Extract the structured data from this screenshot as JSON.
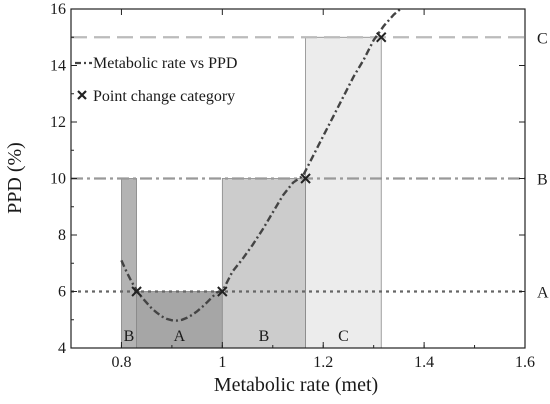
{
  "chart_data": {
    "type": "line",
    "xlabel": "Metabolic rate (met)",
    "ylabel": "PPD (%)",
    "xlim": [
      0.7,
      1.6
    ],
    "ylim": [
      4,
      16
    ],
    "xticks": [
      "0.8",
      "1",
      "1.2",
      "1.4",
      "1.6"
    ],
    "yticks": [
      "4",
      "6",
      "8",
      "10",
      "12",
      "14",
      "16"
    ],
    "grid": false,
    "legend_position": "top-left",
    "series": [
      {
        "name": "Metabolic rate vs PPD",
        "style": "dash-dot",
        "color": "#444444",
        "x": [
          0.8,
          0.81,
          0.82,
          0.83,
          0.84,
          0.85,
          0.86,
          0.87,
          0.88,
          0.89,
          0.9,
          0.91,
          0.92,
          0.93,
          0.94,
          0.95,
          0.96,
          0.97,
          0.98,
          0.99,
          1.0,
          1.02,
          1.04,
          1.06,
          1.08,
          1.1,
          1.12,
          1.14,
          1.16,
          1.18,
          1.2,
          1.22,
          1.24,
          1.26,
          1.28,
          1.3,
          1.32,
          1.34,
          1.36
        ],
        "y": [
          7.1,
          6.7,
          6.35,
          6.05,
          5.8,
          5.6,
          5.4,
          5.25,
          5.12,
          5.03,
          4.98,
          4.97,
          5.0,
          5.07,
          5.17,
          5.3,
          5.45,
          5.62,
          5.8,
          5.98,
          6.0,
          6.7,
          7.15,
          7.65,
          8.2,
          8.8,
          9.4,
          9.85,
          10.1,
          10.8,
          11.5,
          12.2,
          12.9,
          13.6,
          14.2,
          14.9,
          15.4,
          15.8,
          16.1
        ]
      },
      {
        "name": "Point change category",
        "style": "marker-x",
        "color": "#222222",
        "x": [
          0.83,
          1.0,
          1.165,
          1.315
        ],
        "y": [
          6,
          6,
          10,
          15
        ]
      }
    ],
    "thresholds": [
      {
        "label": "A",
        "y": 6,
        "style": "dotted",
        "color": "#666666"
      },
      {
        "label": "B",
        "y": 10,
        "style": "dash-dot",
        "color": "#999999"
      },
      {
        "label": "C",
        "y": 15,
        "style": "dashed",
        "color": "#bbbbbb"
      }
    ],
    "regions": [
      {
        "label": "B",
        "x0": 0.8,
        "x1": 0.83,
        "y0": 4,
        "y1": 10,
        "fill": "#b3b3b3"
      },
      {
        "label": "A",
        "x0": 0.83,
        "x1": 1.0,
        "y0": 4,
        "y1": 6,
        "fill": "#a6a6a6"
      },
      {
        "label": "B",
        "x0": 1.0,
        "x1": 1.165,
        "y0": 4,
        "y1": 10,
        "fill": "#cccccc"
      },
      {
        "label": "C",
        "x0": 1.165,
        "x1": 1.315,
        "y0": 4,
        "y1": 15,
        "fill": "#ececec"
      }
    ]
  }
}
